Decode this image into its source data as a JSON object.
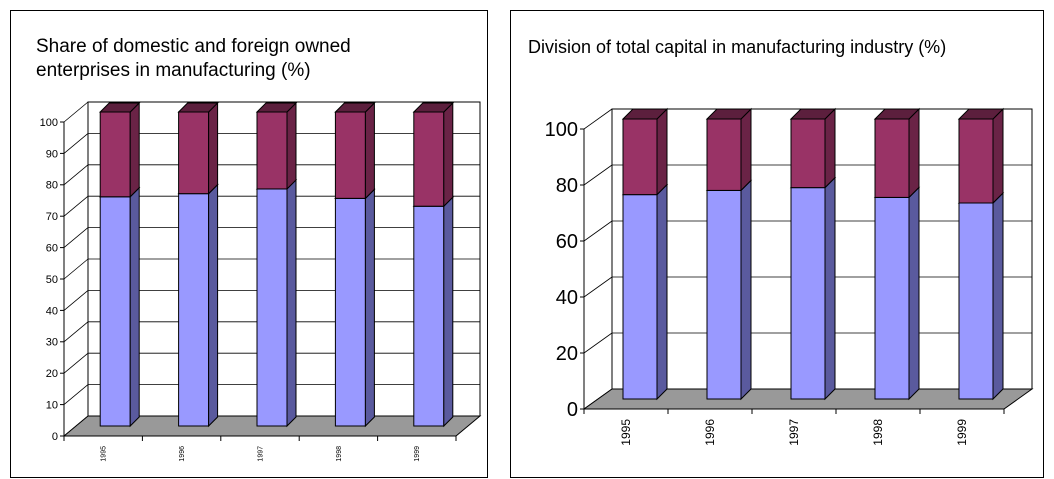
{
  "colors": {
    "domestic_front": "#9999ff",
    "domestic_side": "#5a5a9e",
    "domestic_top": "#7f7fd6",
    "foreign_front": "#993366",
    "foreign_side": "#6a2346",
    "foreign_top": "#5c1f3d",
    "floor": "#999999",
    "grid": "#000000"
  },
  "chart_data": [
    {
      "type": "bar",
      "stacked": true,
      "title": "Share of domestic and foreign owned enterprises in manufacturing (%)",
      "categories": [
        "1995",
        "1996",
        "1997",
        "1998",
        "1999"
      ],
      "series": [
        {
          "values": [
            73,
            74,
            75.5,
            72.5,
            70
          ]
        },
        {
          "values": [
            27,
            26,
            24.5,
            27.5,
            30
          ]
        }
      ],
      "ylim": [
        0,
        100
      ],
      "yticks": [
        "0",
        "10",
        "20",
        "30",
        "40",
        "50",
        "60",
        "70",
        "80",
        "90",
        "100"
      ],
      "grid": true
    },
    {
      "type": "bar",
      "stacked": true,
      "title": "Division of total capital in manufacturing industry (%)",
      "categories": [
        "1995",
        "1996",
        "1997",
        "1998",
        "1999"
      ],
      "series": [
        {
          "values": [
            73,
            74.5,
            75.5,
            72,
            70
          ]
        },
        {
          "values": [
            27,
            25.5,
            24.5,
            28,
            30
          ]
        }
      ],
      "ylim": [
        0,
        100
      ],
      "yticks": [
        "0",
        "20",
        "40",
        "60",
        "80",
        "100"
      ],
      "grid": true
    }
  ]
}
